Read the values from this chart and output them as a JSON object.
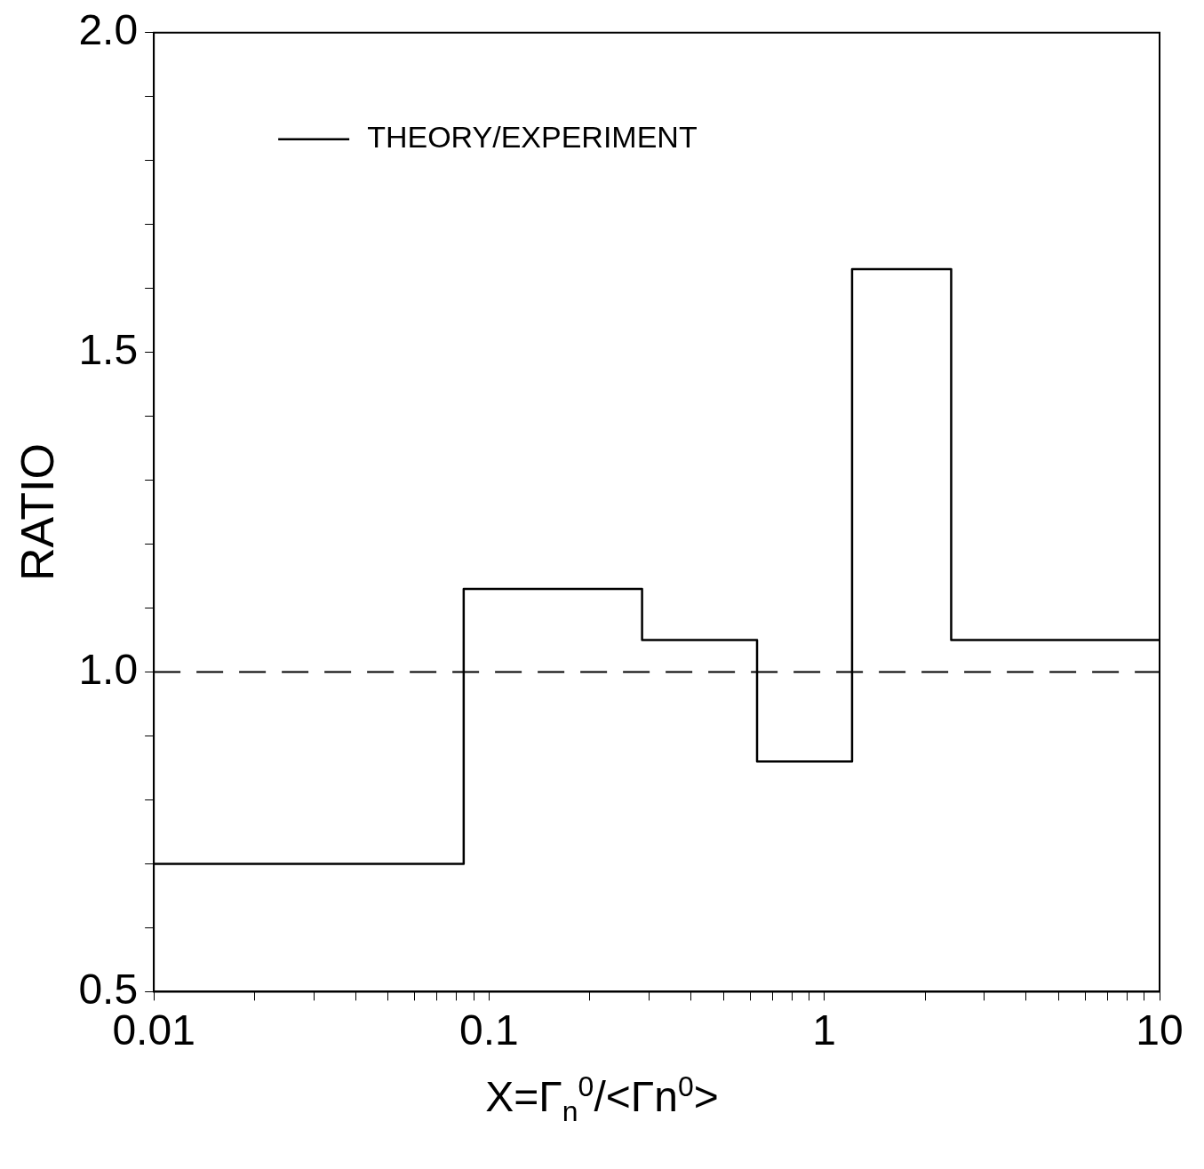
{
  "chart_data": {
    "type": "step",
    "xlabel": "X=Γ$_{n}$$^{0}$/<Γn$^{0}$>",
    "ylabel": "RATIO",
    "log": "x",
    "xlim": [
      0.01,
      10
    ],
    "ylim": [
      0.5,
      2.0
    ],
    "xticks": [
      0.01,
      {
        "value": 0.02,
        "label": null
      },
      {
        "value": 0.03,
        "label": null
      },
      {
        "value": 0.04,
        "label": null
      },
      {
        "value": 0.05,
        "label": null
      },
      {
        "value": 0.06,
        "label": null
      },
      {
        "value": 0.07,
        "label": null
      },
      {
        "value": 0.08,
        "label": null
      },
      {
        "value": 0.09,
        "label": null
      },
      0.1,
      {
        "value": 0.2,
        "label": null
      },
      {
        "value": 0.3,
        "label": null
      },
      {
        "value": 0.4,
        "label": null
      },
      {
        "value": 0.5,
        "label": null
      },
      {
        "value": 0.6,
        "label": null
      },
      {
        "value": 0.7,
        "label": null
      },
      {
        "value": 0.8,
        "label": null
      },
      {
        "value": 0.9,
        "label": null
      },
      1,
      {
        "value": 2,
        "label": null
      },
      {
        "value": 3,
        "label": null
      },
      {
        "value": 4,
        "label": null
      },
      {
        "value": 5,
        "label": null
      },
      {
        "value": 6,
        "label": null
      },
      {
        "value": 7,
        "label": null
      },
      {
        "value": 8,
        "label": null
      },
      {
        "value": 9,
        "label": null
      },
      10
    ],
    "yticks": [
      {
        "value": 0.5,
        "label": "0.5"
      },
      {
        "value": 0.6,
        "label": null
      },
      {
        "value": 0.7,
        "label": null
      },
      {
        "value": 0.8,
        "label": null
      },
      {
        "value": 0.9,
        "label": null
      },
      {
        "value": 1.0,
        "label": "1.0"
      },
      {
        "value": 1.1,
        "label": null
      },
      {
        "value": 1.2,
        "label": null
      },
      {
        "value": 1.3,
        "label": null
      },
      {
        "value": 1.4,
        "label": null
      },
      {
        "value": 1.5,
        "label": "1.5"
      },
      {
        "value": 1.6,
        "label": null
      },
      {
        "value": 1.7,
        "label": null
      },
      {
        "value": 1.8,
        "label": null
      },
      {
        "value": 1.9,
        "label": null
      },
      {
        "value": 2.0,
        "label": "2.0"
      }
    ],
    "series": [
      {
        "name": "THEORY/EXPERIMENT",
        "color": "#000000",
        "x": [
          0.01,
          0.084,
          0.286,
          0.63,
          1.21,
          2.39,
          10
        ],
        "values": [
          0.7,
          1.13,
          1.05,
          0.86,
          1.63,
          1.05,
          1.05
        ]
      }
    ],
    "ref_lines": [
      {
        "axis": "y",
        "value": 1.0,
        "line_style": "dashed",
        "color": "#000000"
      }
    ],
    "legend": "top left",
    "grid": false,
    "marker": "none",
    "line_style": "solid"
  }
}
